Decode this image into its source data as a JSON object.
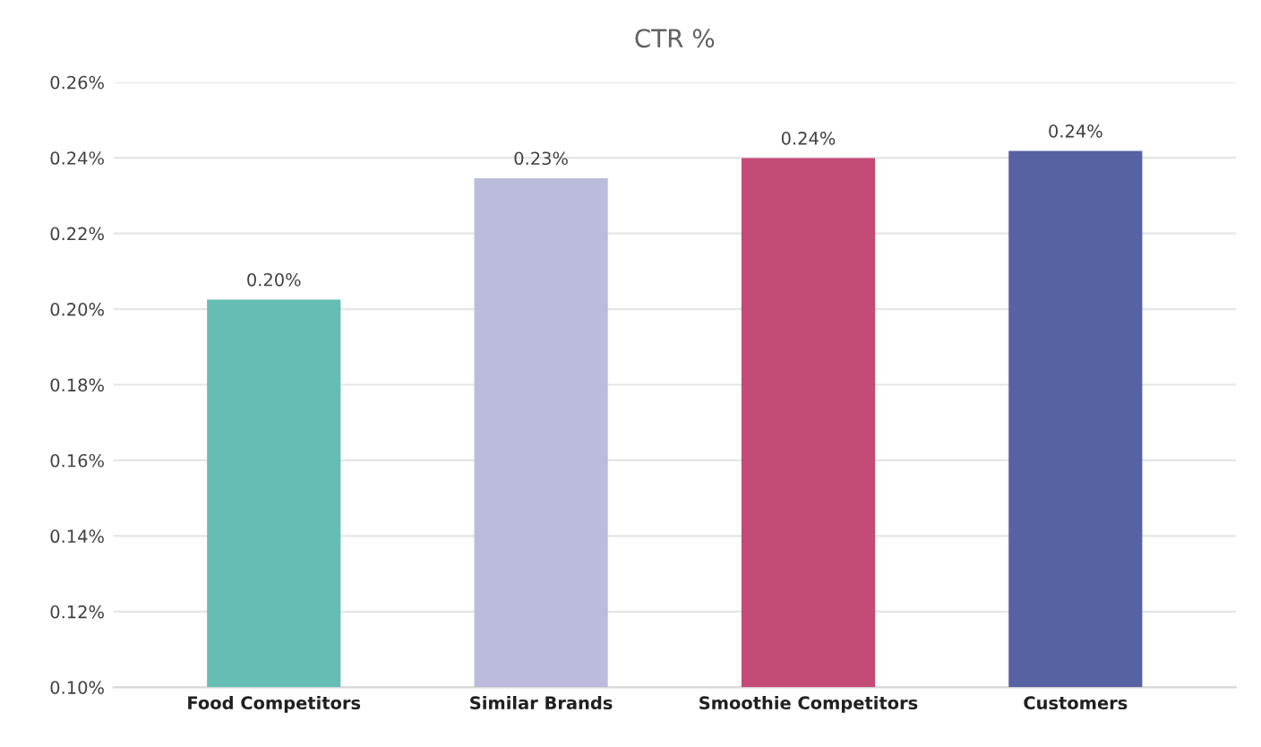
{
  "chart_data": {
    "type": "bar",
    "title": "CTR %",
    "categories": [
      "Food Competitors",
      "Similar Brands",
      "Smoothie Competitors",
      "Customers"
    ],
    "values": [
      0.2025,
      0.2346,
      0.2399,
      0.2418
    ],
    "colors": [
      "#66bdb3",
      "#bbbbdb",
      "#c44a78",
      "#5762a3"
    ],
    "value_labels": [
      "0.20%",
      "0.23%",
      "0.24%",
      "0.24%"
    ],
    "ylim": [
      0.1,
      0.26
    ],
    "yticks": [
      {
        "value": 0.1,
        "label": "0.10%"
      },
      {
        "value": 0.12,
        "label": "0.12%"
      },
      {
        "value": 0.14,
        "label": "0.14%"
      },
      {
        "value": 0.16,
        "label": "0.16%"
      },
      {
        "value": 0.18,
        "label": "0.18%"
      },
      {
        "value": 0.2,
        "label": "0.20%"
      },
      {
        "value": 0.22,
        "label": "0.22%"
      },
      {
        "value": 0.24,
        "label": "0.24%"
      },
      {
        "value": 0.26,
        "label": "0.26%"
      }
    ],
    "grid": "y"
  }
}
